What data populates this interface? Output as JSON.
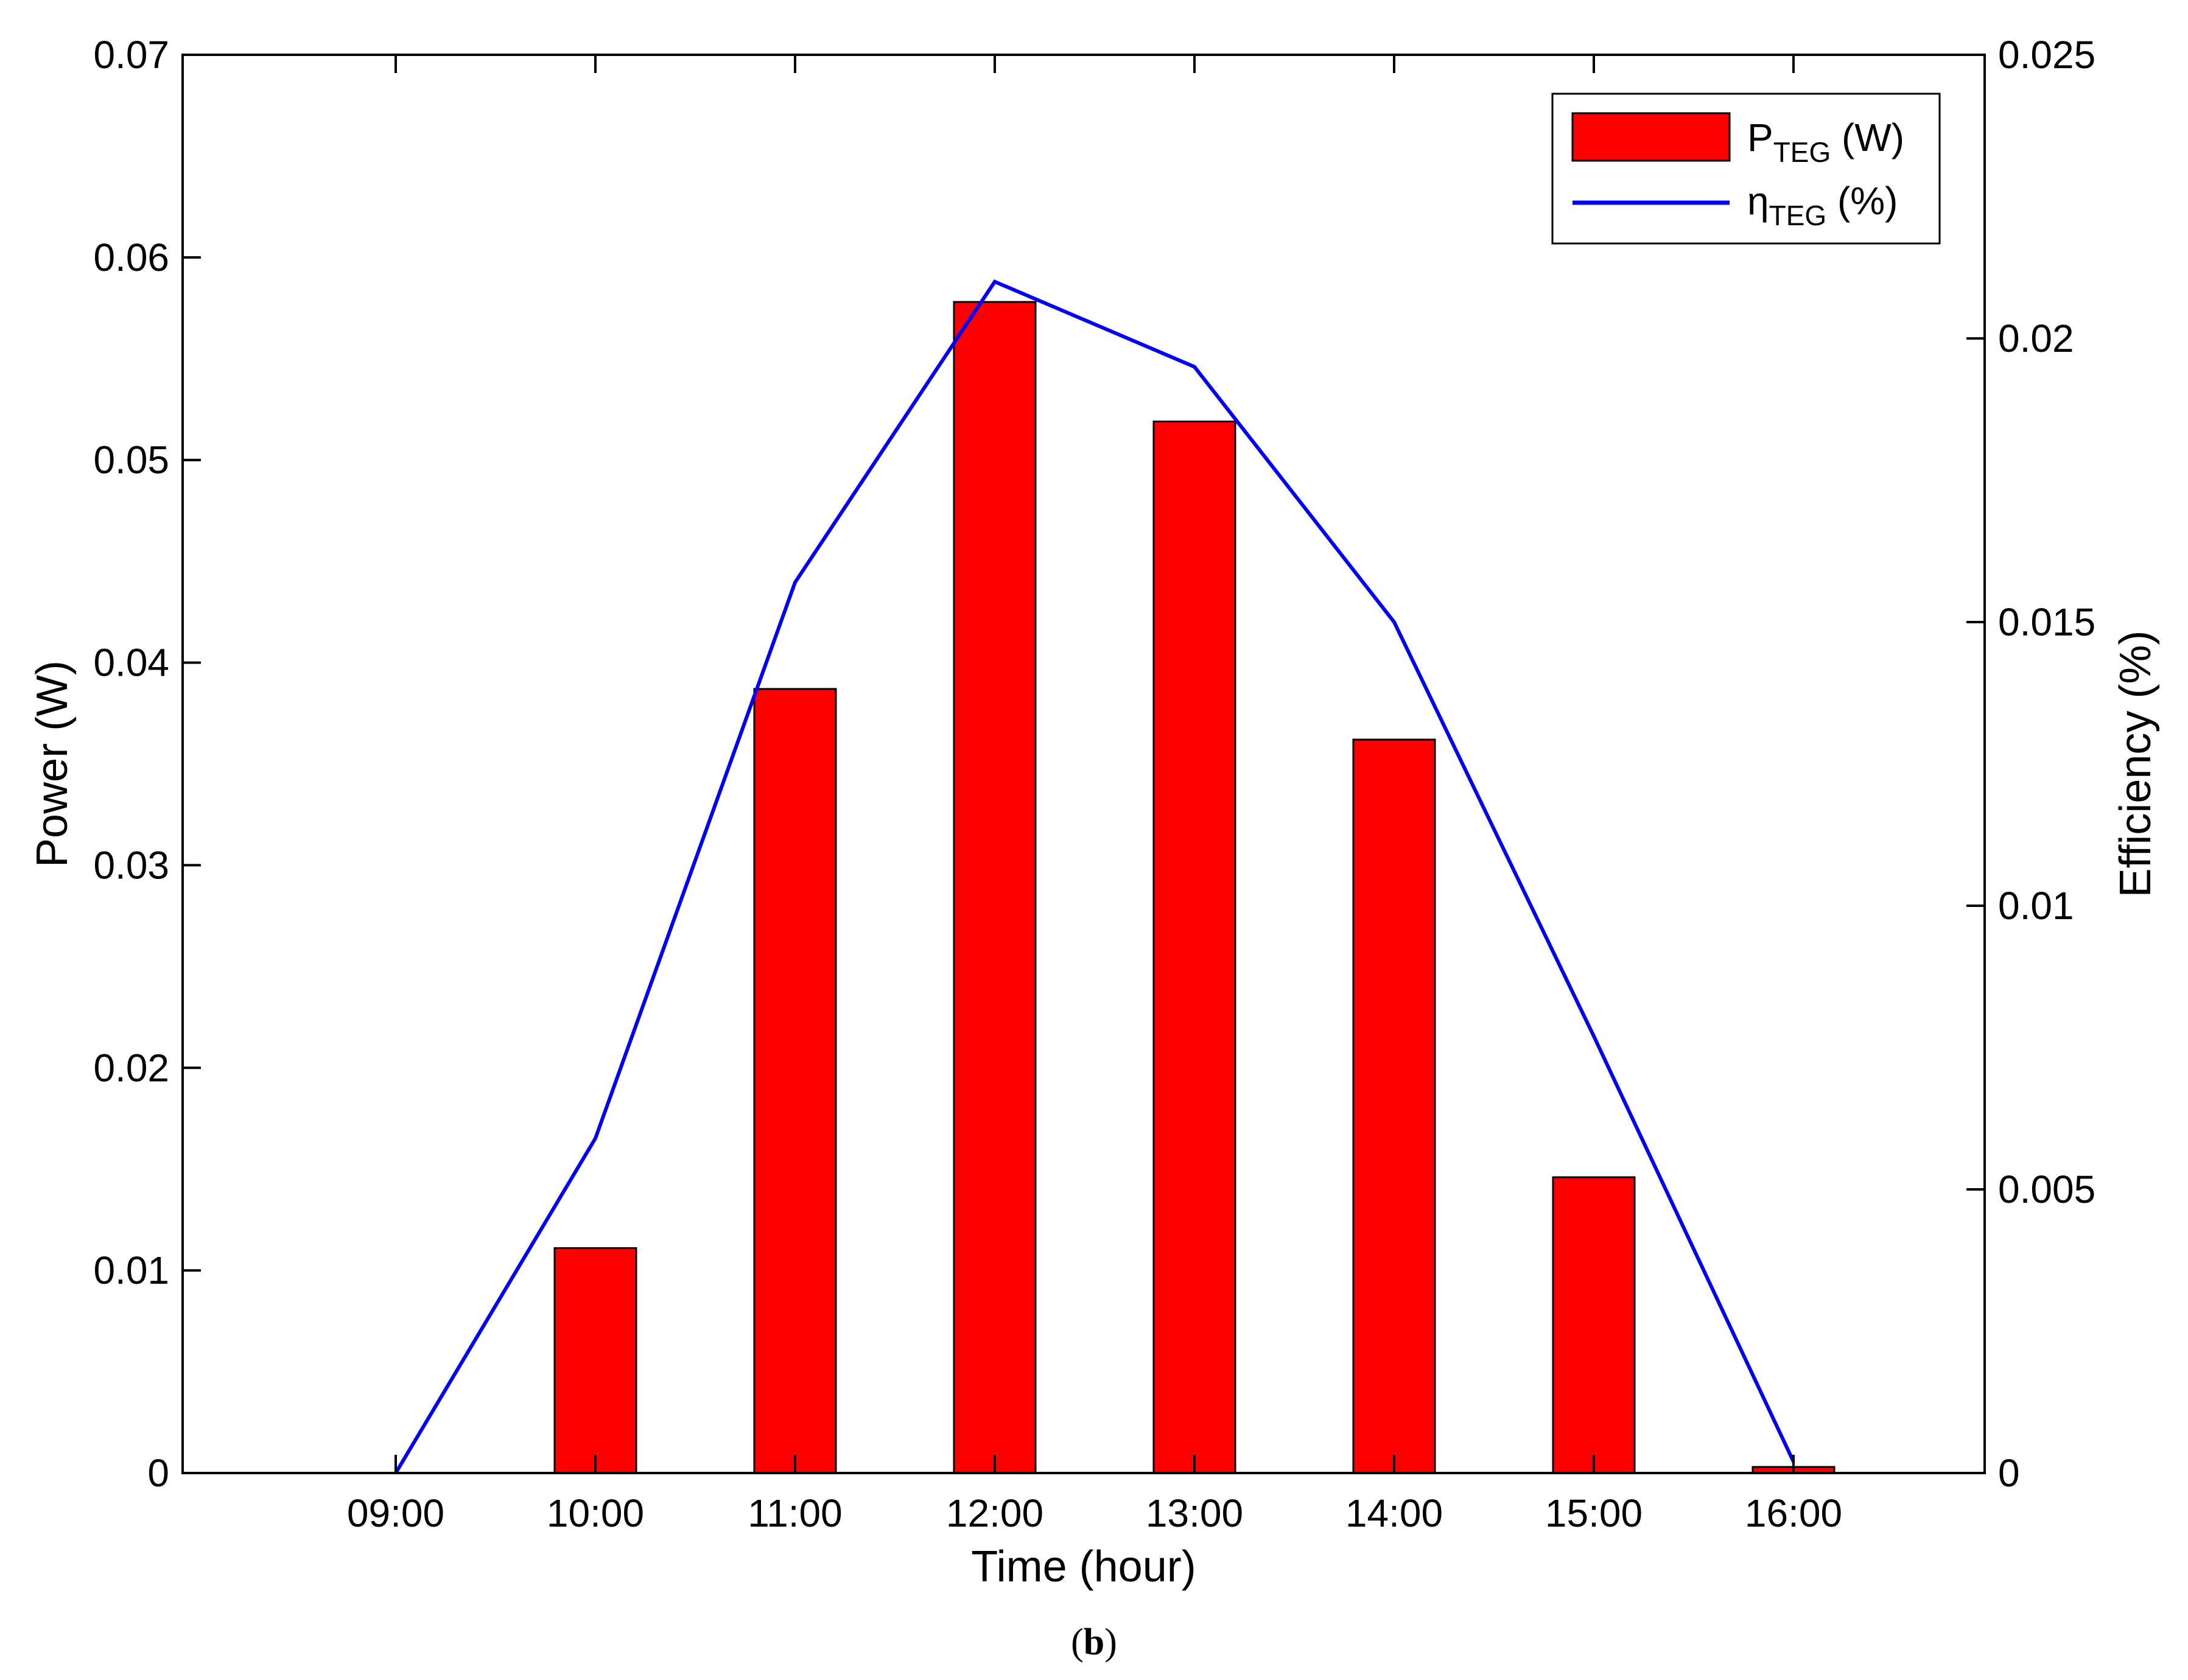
{
  "chart_data": {
    "type": "bar",
    "categories": [
      "09:00",
      "10:00",
      "11:00",
      "12:00",
      "13:00",
      "14:00",
      "15:00",
      "16:00"
    ],
    "series": [
      {
        "name": "P_TEG (W)",
        "name_main": "P",
        "name_sub": "TEG",
        "name_unit": " (W)",
        "type": "bar",
        "axis": "left",
        "color": "#ff0000",
        "edge_color": "#000000",
        "values": [
          0,
          0.0111,
          0.0387,
          0.0578,
          0.0519,
          0.0362,
          0.0146,
          0.0003
        ]
      },
      {
        "name": "η_TEG (%)",
        "name_main": "η",
        "name_sub": "TEG",
        "name_unit": " (%)",
        "type": "line",
        "axis": "right",
        "color": "#0000ff",
        "values": [
          0,
          0.0059,
          0.0157,
          0.021,
          0.0195,
          0.015,
          0.0077,
          0.0002
        ]
      }
    ],
    "xlabel": "Time (hour)",
    "ylabel": "Power (W)",
    "y2label": "Efficiency (%)",
    "ylim": [
      0,
      0.07
    ],
    "y2lim": [
      0,
      0.025
    ],
    "yticks": [
      "0",
      "0.01",
      "0.02",
      "0.03",
      "0.04",
      "0.05",
      "0.06",
      "0.07"
    ],
    "y2ticks": [
      "0",
      "0.005",
      "0.01",
      "0.015",
      "0.02",
      "0.025"
    ],
    "grid": false,
    "legend_position": "top-right"
  },
  "caption": {
    "open": "(",
    "letter": "b",
    "close": ")"
  }
}
